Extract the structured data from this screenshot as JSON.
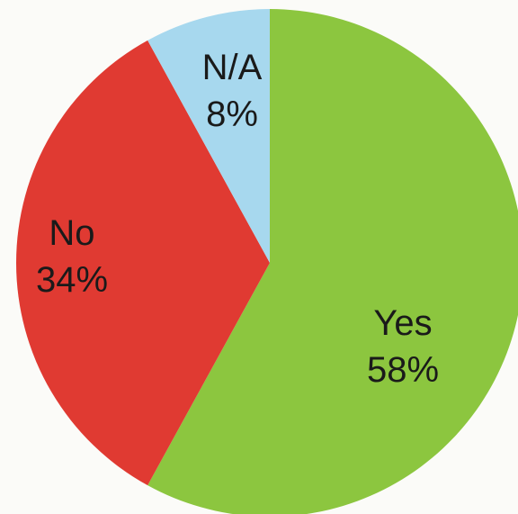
{
  "chart_data": {
    "type": "pie",
    "slices": [
      {
        "label": "Yes",
        "value": 58,
        "value_label": "58%",
        "color": "#8cc63f"
      },
      {
        "label": "No",
        "value": 34,
        "value_label": "34%",
        "color": "#e03a32"
      },
      {
        "label": "N/A",
        "value": 8,
        "value_label": "8%",
        "color": "#a7d8ee"
      }
    ],
    "start": "12-o-clock",
    "direction": "clockwise",
    "legend": "none"
  }
}
